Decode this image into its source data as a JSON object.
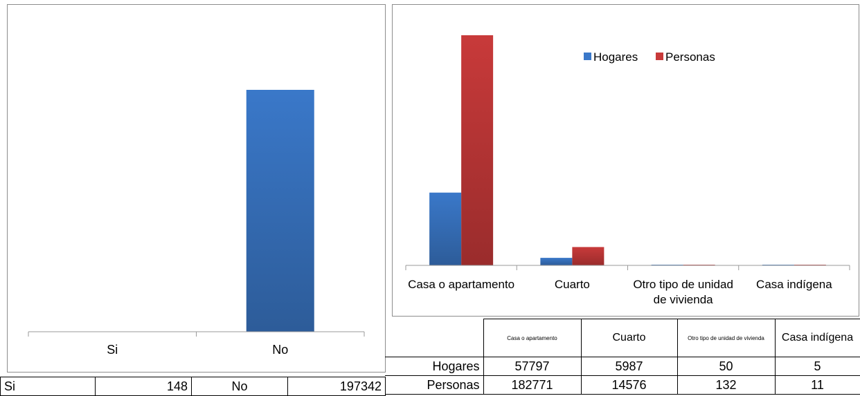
{
  "left_chart": {
    "categories": [
      "Si",
      "No"
    ],
    "values": [
      148,
      197342
    ],
    "color": "#3a78c9",
    "color_dark": "#2d5c99"
  },
  "left_table": {
    "label_si": "Si",
    "value_si": "148",
    "label_no": "No",
    "value_no": "197342"
  },
  "chart_data": [
    {
      "type": "bar",
      "categories": [
        "Si",
        "No"
      ],
      "values": [
        148,
        197342
      ]
    },
    {
      "type": "bar",
      "categories": [
        "Casa o apartamento",
        "Cuarto",
        "Otro tipo de unidad de vivienda",
        "Casa indígena"
      ],
      "series": [
        {
          "name": "Hogares",
          "values": [
            57797,
            5987,
            50,
            5
          ]
        },
        {
          "name": "Personas",
          "values": [
            182771,
            14576,
            132,
            11
          ]
        }
      ],
      "legend": "top-right"
    }
  ],
  "right_chart": {
    "axis_labels": [
      [
        "Casa o apartamento"
      ],
      [
        "Cuarto"
      ],
      [
        "Otro tipo de unidad",
        "de vivienda"
      ],
      [
        "Casa indígena"
      ]
    ],
    "legend": [
      {
        "name": "Hogares",
        "color": "#3a78c9"
      },
      {
        "name": "Personas",
        "color": "#c83a3a"
      }
    ],
    "colors_dark": [
      "#2d5c99",
      "#9a2c2c"
    ]
  },
  "right_table": {
    "headers": [
      "Casa o apartamento",
      "Cuarto",
      "Otro tipo de unidad de vivienda",
      "Casa indígena"
    ],
    "rows": [
      {
        "label": "Hogares",
        "values": [
          "57797",
          "5987",
          "50",
          "5"
        ]
      },
      {
        "label": "Personas",
        "values": [
          "182771",
          "14576",
          "132",
          "11"
        ]
      }
    ]
  }
}
